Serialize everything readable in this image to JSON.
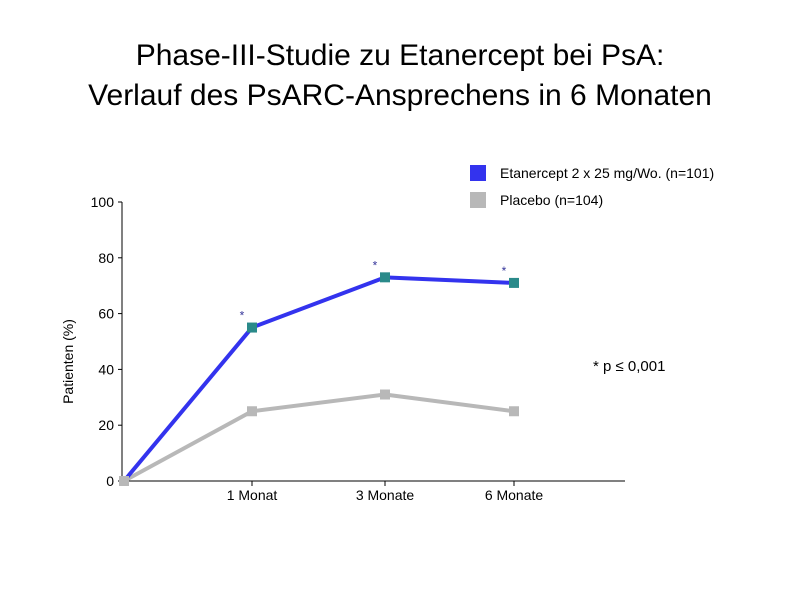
{
  "title": {
    "line1": "Phase-III-Studie zu Etanercept bei PsA:",
    "line2": "Verlauf des PsARC-Ansprechens in 6 Monaten"
  },
  "legend": [
    {
      "label": "Etanercept 2 x 25 mg/Wo. (n=101)",
      "color": "#3333ee"
    },
    {
      "label": "Placebo (n=104)",
      "color": "#b8b8b8"
    }
  ],
  "note": "* p ≤ 0,001",
  "chart_data": {
    "type": "line",
    "ylabel": "Patienten (%)",
    "xlabel": "",
    "ylim": [
      0,
      100
    ],
    "yticks": [
      0,
      20,
      40,
      60,
      80,
      100
    ],
    "x": [
      "",
      "1 Monat",
      "3 Monate",
      "6 Monate"
    ],
    "grid": false,
    "legend_position": "top-right",
    "series": [
      {
        "name": "Etanercept 2 x 25 mg/Wo. (n=101)",
        "color": "#3333ee",
        "marker_color": "#2a8a8a",
        "values": [
          0,
          55,
          73,
          71
        ],
        "annotations": [
          "",
          "*",
          "*",
          "*"
        ]
      },
      {
        "name": "Placebo (n=104)",
        "color": "#b8b8b8",
        "marker_color": "#b8b8b8",
        "values": [
          0,
          25,
          31,
          25
        ]
      }
    ]
  }
}
